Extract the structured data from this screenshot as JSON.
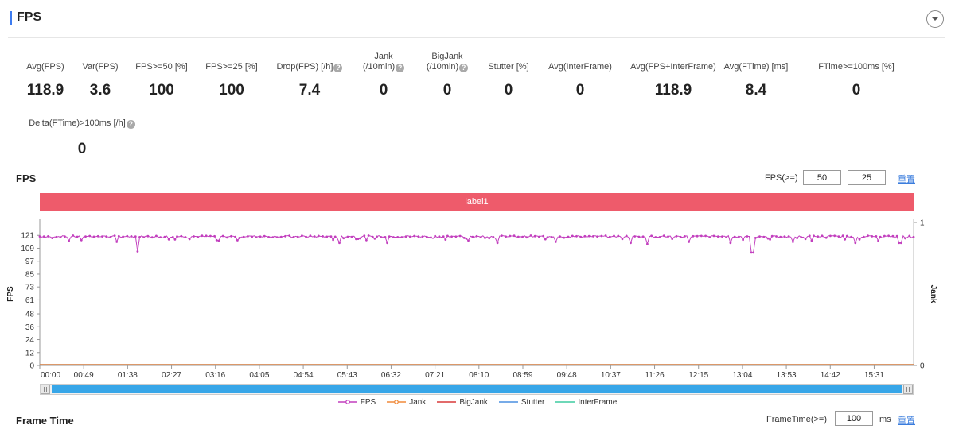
{
  "header": {
    "title": "FPS"
  },
  "metrics": [
    {
      "label": "Avg(FPS)",
      "value": "118.9",
      "help": false
    },
    {
      "label": "Var(FPS)",
      "value": "3.6",
      "help": false
    },
    {
      "label": "FPS>=50 [%]",
      "value": "100",
      "help": false
    },
    {
      "label": "FPS>=25 [%]",
      "value": "100",
      "help": false
    },
    {
      "label": "Drop(FPS) [/h]",
      "value": "7.4",
      "help": true
    },
    {
      "label": "Jank",
      "label2": "(/10min)",
      "value": "0",
      "help": true
    },
    {
      "label": "BigJank",
      "label2": "(/10min)",
      "value": "0",
      "help": true
    },
    {
      "label": "Stutter [%]",
      "value": "0",
      "help": false
    },
    {
      "label": "Avg(InterFrame)",
      "value": "0",
      "help": false
    },
    {
      "label": "Avg(FPS+InterFrame)",
      "value": "118.9",
      "help": false
    },
    {
      "label": "Avg(FTime) [ms]",
      "value": "8.4",
      "help": false
    },
    {
      "label": "FTime>=100ms [%]",
      "value": "0",
      "help": false
    },
    {
      "label": "Delta(FTime)>100ms [/h]",
      "value": "0",
      "help": true
    }
  ],
  "fps_section": {
    "title": "FPS",
    "threshold_label": "FPS(>=)",
    "threshold_1": "50",
    "threshold_2": "25",
    "reset_label": "重置",
    "label_bar": "label1"
  },
  "frametime_section": {
    "title": "Frame Time",
    "threshold_label": "FrameTime(>=)",
    "threshold_value": "100",
    "unit": "ms",
    "reset_label": "重置"
  },
  "colors": {
    "fps": "#c23fbe",
    "jank": "#f08a3a",
    "bigjank": "#d93a3a",
    "stutter": "#4a8fe0",
    "interframe": "#3ecba0"
  },
  "chart_data": {
    "type": "line",
    "x": [
      "00:00",
      "00:49",
      "01:38",
      "02:27",
      "03:16",
      "04:05",
      "04:54",
      "05:43",
      "06:32",
      "07:21",
      "08:10",
      "08:59",
      "09:48",
      "10:37",
      "11:26",
      "12:15",
      "13:04",
      "13:53",
      "14:42",
      "15:31"
    ],
    "y_left_ticks": [
      0,
      12,
      24,
      36,
      48,
      61,
      73,
      85,
      97,
      109,
      121
    ],
    "y_right_ticks": [
      0,
      1
    ],
    "ylim": [
      0,
      133
    ],
    "y2lim": [
      0,
      1
    ],
    "ylabel": "FPS",
    "y2label": "Jank",
    "fps_typical": 120,
    "dips": [
      {
        "x": "00:33",
        "y": 116
      },
      {
        "x": "01:25",
        "y": 115
      },
      {
        "x": "01:49",
        "y": 106
      },
      {
        "x": "03:20",
        "y": 116
      },
      {
        "x": "05:35",
        "y": 114
      },
      {
        "x": "06:28",
        "y": 114
      },
      {
        "x": "08:30",
        "y": 114
      },
      {
        "x": "09:35",
        "y": 115
      },
      {
        "x": "11:00",
        "y": 114
      },
      {
        "x": "11:18",
        "y": 113
      },
      {
        "x": "12:05",
        "y": 115
      },
      {
        "x": "12:50",
        "y": 114
      },
      {
        "x": "13:15",
        "y": 105
      },
      {
        "x": "14:00",
        "y": 115
      },
      {
        "x": "15:10",
        "y": 114
      },
      {
        "x": "16:00",
        "y": 114
      }
    ],
    "series": [
      {
        "name": "FPS"
      },
      {
        "name": "Jank"
      },
      {
        "name": "BigJank"
      },
      {
        "name": "Stutter"
      },
      {
        "name": "InterFrame"
      }
    ],
    "legend_position": "bottom"
  }
}
